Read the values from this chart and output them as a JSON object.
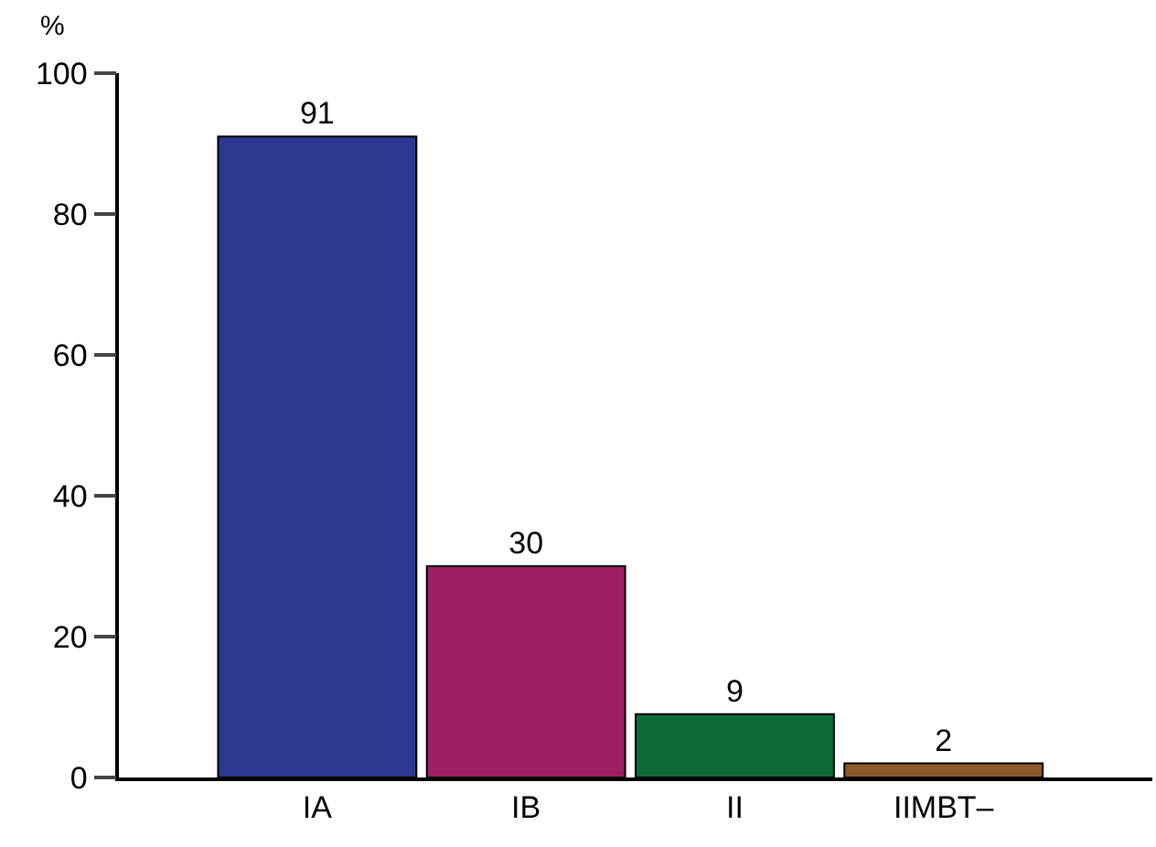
{
  "chart_data": {
    "type": "bar",
    "ylabel": "%",
    "categories": [
      "IA",
      "IB",
      "II",
      "IIMBT–"
    ],
    "values": [
      91,
      30,
      9,
      2
    ],
    "colors": [
      "#2b3990",
      "#9e1f63",
      "#0e6b3a",
      "#8b5a2b"
    ],
    "ylim": [
      0,
      100
    ],
    "yticks": [
      0,
      20,
      40,
      60,
      80,
      100
    ],
    "data_labels": true
  }
}
